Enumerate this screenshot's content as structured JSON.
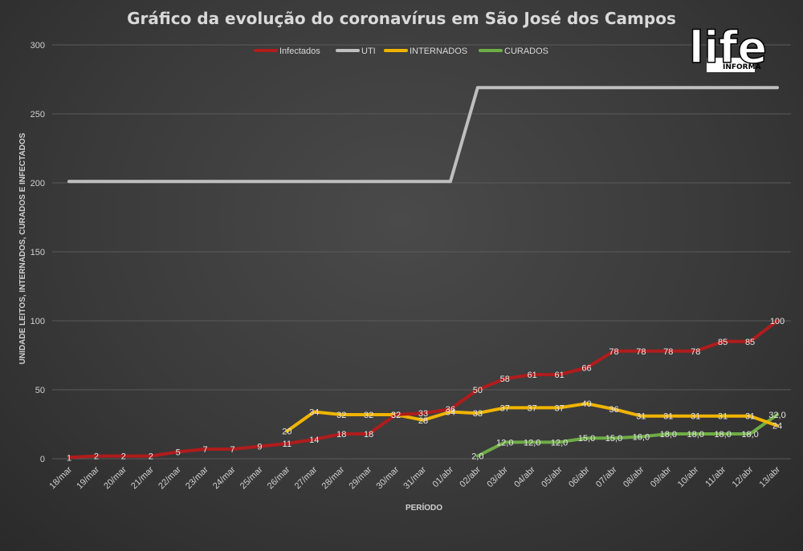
{
  "chart_data": {
    "type": "line",
    "title": "Gráfico da evolução do coronavírus em São José dos Campos",
    "xlabel": "PERÍODO",
    "ylabel": "UNIDADE LEITOS, INTERNADOS, CURADOS E INFECTADOS",
    "ylim": [
      0,
      300
    ],
    "yticks": [
      "0",
      "50",
      "100",
      "150",
      "200",
      "250",
      "300"
    ],
    "grid": true,
    "legend_position": "top",
    "categories": [
      "18/mar",
      "19/mar",
      "20/mar",
      "21/mar",
      "22/mar",
      "23/mar",
      "24/mar",
      "25/mar",
      "26/mar",
      "27/mar",
      "28/mar",
      "29/mar",
      "30/mar",
      "31/mar",
      "01/abr",
      "02/abr",
      "03/abr",
      "04/abr",
      "05/abr",
      "06/abr",
      "07/abr",
      "08/abr",
      "09/abr",
      "10/abr",
      "11/abr",
      "12/abr",
      "13/abr"
    ],
    "series": [
      {
        "name": "Infectados",
        "color": "#b01c1c",
        "values": [
          1,
          2,
          2,
          2,
          5,
          7,
          7,
          9,
          11,
          14,
          18,
          18,
          32,
          33,
          36,
          50,
          58,
          61,
          61,
          66,
          78,
          78,
          78,
          78,
          85,
          85,
          100
        ],
        "labels": [
          "1",
          "2",
          "2",
          "2",
          "5",
          "7",
          "7",
          "9",
          "11",
          "14",
          "18",
          "18",
          "32",
          "33",
          "36",
          "50",
          "58",
          "61",
          "61",
          "66",
          "78",
          "78",
          "78",
          "78",
          "85",
          "85",
          "100"
        ]
      },
      {
        "name": "UTI",
        "color": "#bfbfbf",
        "values": [
          201,
          201,
          201,
          201,
          201,
          201,
          201,
          201,
          201,
          201,
          201,
          201,
          201,
          201,
          201,
          269,
          269,
          269,
          269,
          269,
          269,
          269,
          269,
          269,
          269,
          269,
          269
        ],
        "labels": []
      },
      {
        "name": "INTERNADOS",
        "color": "#f0b400",
        "values": [
          null,
          null,
          null,
          null,
          null,
          null,
          null,
          null,
          20,
          34,
          32,
          32,
          32,
          28,
          34,
          33,
          37,
          37,
          37,
          40,
          36,
          31,
          31,
          31,
          31,
          31,
          24
        ],
        "labels": [
          null,
          null,
          null,
          null,
          null,
          null,
          null,
          null,
          "20",
          "34",
          "32",
          "32",
          "32",
          "28",
          "34",
          "33",
          "37",
          "37",
          "37",
          "40",
          "36",
          "31",
          "31",
          "31",
          "31",
          "31",
          "24"
        ]
      },
      {
        "name": "CURADOS",
        "color": "#6fac46",
        "values": [
          null,
          null,
          null,
          null,
          null,
          null,
          null,
          null,
          null,
          null,
          null,
          null,
          null,
          null,
          null,
          2,
          12,
          12,
          12,
          15,
          15,
          16,
          18,
          18,
          18,
          18,
          32
        ],
        "labels": [
          null,
          null,
          null,
          null,
          null,
          null,
          null,
          null,
          null,
          null,
          null,
          null,
          null,
          null,
          null,
          "2,0",
          "12,0",
          "12,0",
          "12,0",
          "15,0",
          "15,0",
          "16,0",
          "18,0",
          "18,0",
          "18,0",
          "18,0",
          "32,0"
        ]
      }
    ]
  },
  "logo": {
    "main": "life",
    "sub": "INFORMA"
  }
}
